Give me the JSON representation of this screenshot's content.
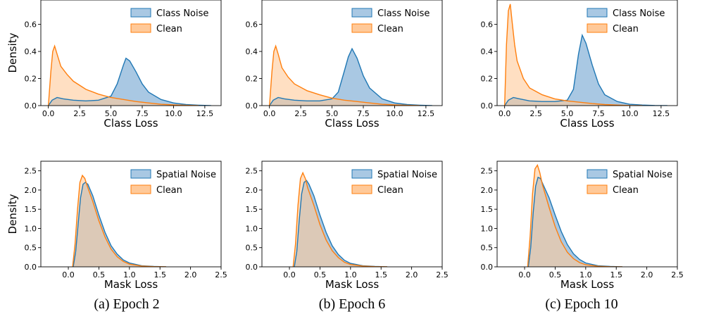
{
  "colors": {
    "noise_line": "#1f77b4",
    "noise_fill": "#a9c8e3",
    "clean_line": "#ff7f0e",
    "clean_fill": "#ffc999",
    "overlap_fill": "#b3b1a2"
  },
  "captions": [
    "(a) Epoch 2",
    "(b) Epoch 6",
    "(c) Epoch 10"
  ],
  "chart_data": [
    {
      "type": "area",
      "row": 0,
      "col": 0,
      "xlabel": "Class Loss",
      "ylabel": "Density",
      "xlim": [
        -0.6,
        13.8
      ],
      "ylim": [
        0,
        0.78
      ],
      "xticks": [
        0.0,
        2.5,
        5.0,
        7.5,
        10.0,
        12.5
      ],
      "xtick_labels": [
        "0.0",
        "2.5",
        "5.0",
        "7.5",
        "10.0",
        "12.5"
      ],
      "yticks": [
        0.0,
        0.2,
        0.4,
        0.6
      ],
      "ytick_labels": [
        "0.0",
        "0.2",
        "0.4",
        "0.6"
      ],
      "legend": "top-right",
      "series": [
        {
          "name": "Class Noise",
          "kind": "noise",
          "x": [
            0.0,
            0.3,
            0.7,
            1.2,
            2.0,
            3.0,
            4.0,
            5.0,
            5.5,
            6.0,
            6.2,
            6.5,
            7.0,
            7.5,
            8.0,
            9.0,
            10.0,
            11.0,
            12.0,
            13.0
          ],
          "y": [
            0.0,
            0.04,
            0.06,
            0.05,
            0.04,
            0.035,
            0.04,
            0.07,
            0.16,
            0.3,
            0.35,
            0.33,
            0.25,
            0.16,
            0.1,
            0.045,
            0.02,
            0.008,
            0.003,
            0.0
          ]
        },
        {
          "name": "Clean",
          "kind": "clean",
          "x": [
            0.0,
            0.2,
            0.35,
            0.5,
            0.7,
            1.0,
            1.5,
            2.0,
            3.0,
            4.0,
            5.0,
            6.0,
            7.0,
            8.0,
            9.0,
            10.0,
            11.0,
            12.0
          ],
          "y": [
            0.0,
            0.25,
            0.4,
            0.44,
            0.38,
            0.29,
            0.23,
            0.18,
            0.12,
            0.085,
            0.06,
            0.045,
            0.03,
            0.02,
            0.01,
            0.005,
            0.002,
            0.0
          ]
        }
      ]
    },
    {
      "type": "area",
      "row": 0,
      "col": 1,
      "xlabel": "Class Loss",
      "ylabel": "",
      "xlim": [
        -0.6,
        13.8
      ],
      "ylim": [
        0,
        0.78
      ],
      "xticks": [
        0.0,
        2.5,
        5.0,
        7.5,
        10.0,
        12.5
      ],
      "xtick_labels": [
        "0.0",
        "2.5",
        "5.0",
        "7.5",
        "10.0",
        "12.5"
      ],
      "yticks": [
        0.0,
        0.2,
        0.4,
        0.6
      ],
      "ytick_labels": [
        "0.0",
        "0.2",
        "0.4",
        "0.6"
      ],
      "legend": "top-right",
      "series": [
        {
          "name": "Class Noise",
          "kind": "noise",
          "x": [
            0.0,
            0.3,
            0.7,
            1.2,
            2.0,
            3.0,
            4.0,
            5.0,
            5.5,
            6.0,
            6.3,
            6.6,
            7.0,
            7.5,
            8.0,
            9.0,
            10.0,
            11.0,
            12.0,
            13.0
          ],
          "y": [
            0.0,
            0.04,
            0.06,
            0.05,
            0.04,
            0.035,
            0.035,
            0.05,
            0.1,
            0.26,
            0.36,
            0.42,
            0.35,
            0.22,
            0.13,
            0.05,
            0.02,
            0.008,
            0.003,
            0.0
          ]
        },
        {
          "name": "Clean",
          "kind": "clean",
          "x": [
            0.0,
            0.2,
            0.35,
            0.5,
            0.7,
            1.0,
            1.5,
            2.0,
            3.0,
            4.0,
            5.0,
            6.0,
            7.0,
            8.0,
            9.0,
            10.0,
            11.0,
            12.0
          ],
          "y": [
            0.0,
            0.25,
            0.4,
            0.44,
            0.38,
            0.28,
            0.21,
            0.16,
            0.11,
            0.08,
            0.055,
            0.04,
            0.03,
            0.02,
            0.01,
            0.005,
            0.002,
            0.0
          ]
        }
      ]
    },
    {
      "type": "area",
      "row": 0,
      "col": 2,
      "xlabel": "Class Loss",
      "ylabel": "",
      "xlim": [
        -0.6,
        13.8
      ],
      "ylim": [
        0,
        0.78
      ],
      "xticks": [
        0.0,
        2.5,
        5.0,
        7.5,
        10.0,
        12.5
      ],
      "xtick_labels": [
        "0.0",
        "2.5",
        "5.0",
        "7.5",
        "10.0",
        "12.5"
      ],
      "yticks": [
        0.0,
        0.2,
        0.4,
        0.6
      ],
      "ytick_labels": [
        "0.0",
        "0.2",
        "0.4",
        "0.6"
      ],
      "legend": "top-right",
      "series": [
        {
          "name": "Class Noise",
          "kind": "noise",
          "x": [
            0.0,
            0.3,
            0.7,
            1.2,
            2.0,
            3.0,
            4.0,
            5.0,
            5.5,
            5.9,
            6.2,
            6.5,
            7.0,
            7.5,
            8.0,
            9.0,
            10.0,
            11.0,
            12.0,
            13.0
          ],
          "y": [
            0.0,
            0.04,
            0.06,
            0.05,
            0.035,
            0.03,
            0.03,
            0.04,
            0.12,
            0.38,
            0.52,
            0.46,
            0.3,
            0.16,
            0.08,
            0.03,
            0.01,
            0.004,
            0.001,
            0.0
          ]
        },
        {
          "name": "Clean",
          "kind": "clean",
          "x": [
            0.0,
            0.15,
            0.3,
            0.45,
            0.6,
            0.8,
            1.0,
            1.5,
            2.0,
            3.0,
            4.0,
            5.0,
            6.0,
            7.0,
            8.0,
            9.0,
            10.0,
            11.0
          ],
          "y": [
            0.0,
            0.45,
            0.7,
            0.75,
            0.62,
            0.45,
            0.33,
            0.2,
            0.13,
            0.08,
            0.05,
            0.035,
            0.025,
            0.015,
            0.008,
            0.004,
            0.001,
            0.0
          ]
        }
      ]
    },
    {
      "type": "area",
      "row": 1,
      "col": 0,
      "xlabel": "Mask Loss",
      "ylabel": "Density",
      "xlim": [
        -0.45,
        2.5
      ],
      "ylim": [
        0,
        2.75
      ],
      "xticks": [
        0.0,
        0.5,
        1.0,
        1.5,
        2.0,
        2.5
      ],
      "xtick_labels": [
        "0.0",
        "0.5",
        "1.0",
        "1.5",
        "2.0",
        "2.5"
      ],
      "yticks": [
        0.0,
        0.5,
        1.0,
        1.5,
        2.0,
        2.5
      ],
      "ytick_labels": [
        "0.0",
        "0.5",
        "1.0",
        "1.5",
        "2.0",
        "2.5"
      ],
      "legend": "top-right",
      "series": [
        {
          "name": "Spatial Noise",
          "kind": "noise",
          "x": [
            0.08,
            0.12,
            0.16,
            0.2,
            0.24,
            0.28,
            0.32,
            0.4,
            0.5,
            0.6,
            0.7,
            0.8,
            0.9,
            1.0,
            1.2,
            1.4,
            1.6
          ],
          "y": [
            0.0,
            0.4,
            1.1,
            1.8,
            2.15,
            2.2,
            2.15,
            1.85,
            1.35,
            0.9,
            0.55,
            0.33,
            0.18,
            0.1,
            0.03,
            0.01,
            0.0
          ]
        },
        {
          "name": "Clean",
          "kind": "clean",
          "x": [
            0.07,
            0.11,
            0.15,
            0.19,
            0.23,
            0.27,
            0.31,
            0.4,
            0.5,
            0.6,
            0.7,
            0.8,
            0.9,
            1.0,
            1.2,
            1.4,
            1.6
          ],
          "y": [
            0.0,
            0.6,
            1.5,
            2.2,
            2.38,
            2.3,
            2.1,
            1.7,
            1.2,
            0.78,
            0.46,
            0.26,
            0.14,
            0.07,
            0.02,
            0.005,
            0.0
          ]
        }
      ]
    },
    {
      "type": "area",
      "row": 1,
      "col": 1,
      "xlabel": "Mask Loss",
      "ylabel": "",
      "xlim": [
        -0.45,
        2.5
      ],
      "ylim": [
        0,
        2.75
      ],
      "xticks": [
        0.0,
        0.5,
        1.0,
        1.5,
        2.0,
        2.5
      ],
      "xtick_labels": [
        "0.0",
        "0.5",
        "1.0",
        "1.5",
        "2.0",
        "2.5"
      ],
      "yticks": [
        0.0,
        0.5,
        1.0,
        1.5,
        2.0,
        2.5
      ],
      "ytick_labels": [
        "0.0",
        "0.5",
        "1.0",
        "1.5",
        "2.0",
        "2.5"
      ],
      "legend": "top-right",
      "series": [
        {
          "name": "Spatial Noise",
          "kind": "noise",
          "x": [
            0.08,
            0.12,
            0.16,
            0.2,
            0.24,
            0.28,
            0.32,
            0.4,
            0.5,
            0.6,
            0.7,
            0.8,
            0.9,
            1.0,
            1.2,
            1.4,
            1.6
          ],
          "y": [
            0.0,
            0.4,
            1.2,
            1.9,
            2.2,
            2.25,
            2.15,
            1.85,
            1.35,
            0.9,
            0.55,
            0.32,
            0.17,
            0.09,
            0.03,
            0.01,
            0.0
          ]
        },
        {
          "name": "Clean",
          "kind": "clean",
          "x": [
            0.06,
            0.1,
            0.14,
            0.18,
            0.22,
            0.26,
            0.3,
            0.4,
            0.5,
            0.6,
            0.7,
            0.8,
            0.9,
            1.0,
            1.2,
            1.4,
            1.6
          ],
          "y": [
            0.0,
            0.6,
            1.6,
            2.3,
            2.45,
            2.3,
            2.05,
            1.6,
            1.1,
            0.7,
            0.42,
            0.24,
            0.12,
            0.06,
            0.02,
            0.005,
            0.0
          ]
        }
      ]
    },
    {
      "type": "area",
      "row": 1,
      "col": 2,
      "xlabel": "Mask Loss",
      "ylabel": "",
      "xlim": [
        -0.45,
        2.5
      ],
      "ylim": [
        0,
        2.75
      ],
      "xticks": [
        0.0,
        0.5,
        1.0,
        1.5,
        2.0,
        2.5
      ],
      "xtick_labels": [
        "0.0",
        "0.5",
        "1.0",
        "1.5",
        "2.0",
        "2.5"
      ],
      "yticks": [
        0.0,
        0.5,
        1.0,
        1.5,
        2.0,
        2.5
      ],
      "ytick_labels": [
        "0.0",
        "0.5",
        "1.0",
        "1.5",
        "2.0",
        "2.5"
      ],
      "legend": "top-right",
      "series": [
        {
          "name": "Spatial Noise",
          "kind": "noise",
          "x": [
            0.06,
            0.1,
            0.14,
            0.18,
            0.22,
            0.26,
            0.3,
            0.4,
            0.5,
            0.6,
            0.7,
            0.8,
            0.9,
            1.0,
            1.2,
            1.4,
            1.6
          ],
          "y": [
            0.0,
            0.5,
            1.4,
            2.1,
            2.33,
            2.3,
            2.15,
            1.8,
            1.35,
            0.92,
            0.58,
            0.34,
            0.19,
            0.1,
            0.03,
            0.01,
            0.0
          ]
        },
        {
          "name": "Clean",
          "kind": "clean",
          "x": [
            0.05,
            0.09,
            0.13,
            0.17,
            0.21,
            0.25,
            0.29,
            0.4,
            0.5,
            0.6,
            0.7,
            0.8,
            0.9,
            1.0,
            1.2,
            1.4,
            1.6
          ],
          "y": [
            0.0,
            0.8,
            1.9,
            2.55,
            2.65,
            2.45,
            2.15,
            1.55,
            1.05,
            0.65,
            0.38,
            0.21,
            0.11,
            0.055,
            0.015,
            0.004,
            0.0
          ]
        }
      ]
    }
  ]
}
